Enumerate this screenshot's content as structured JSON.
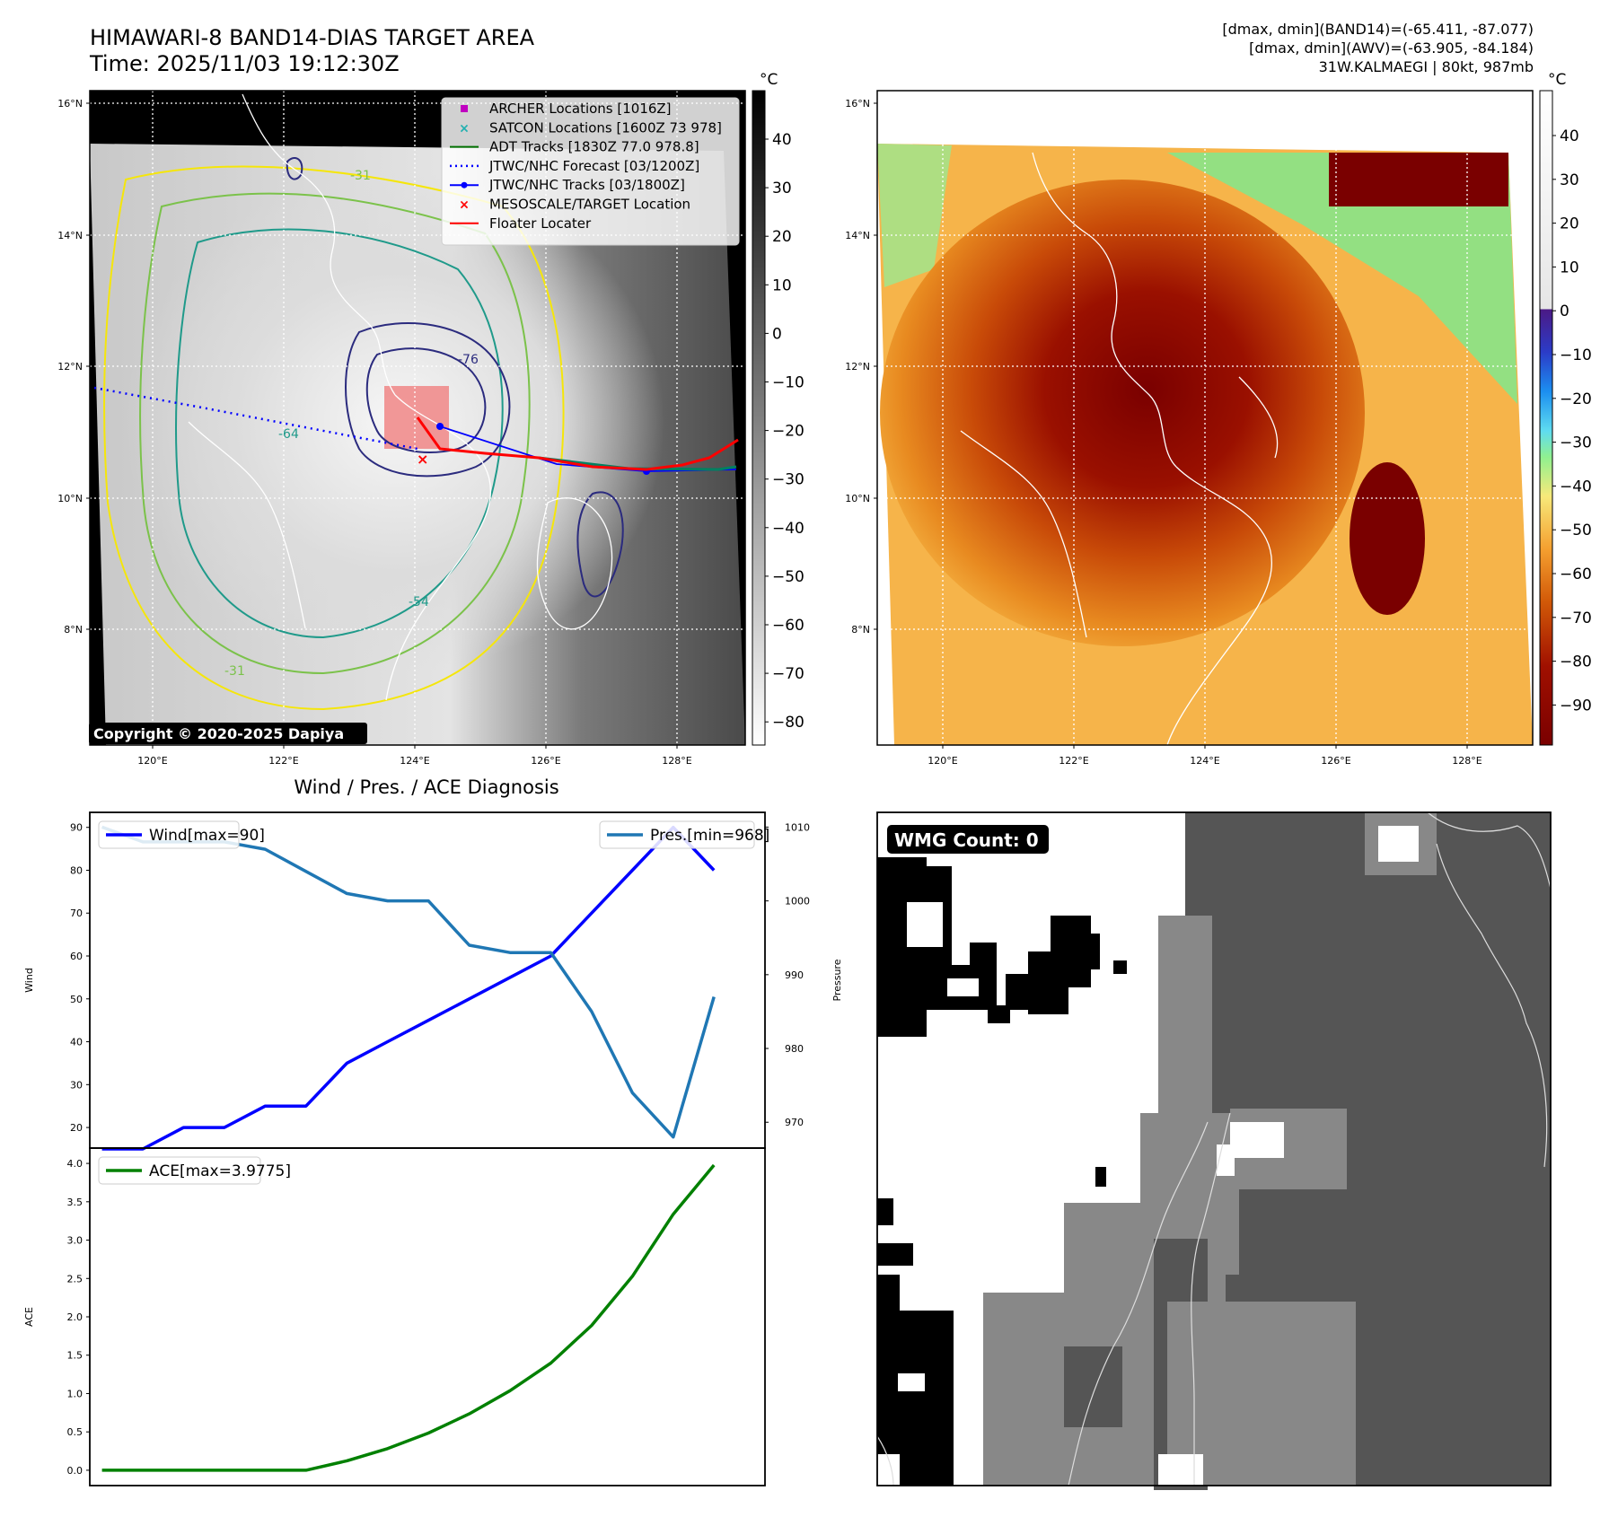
{
  "header": {
    "title_line1": "HIMAWARI-8 BAND14-DIAS TARGET AREA",
    "title_line2": "Time: 2025/11/03 19:12:30Z",
    "info_line1": "[dmax, dmin](BAND14)=(-65.411, -87.077)",
    "info_line2": "[dmax, dmin](AWV)=(-63.905, -84.184)",
    "info_line3": "31W.KALMAEGI | 80kt, 987mb"
  },
  "map_left": {
    "lat_labels": [
      "16°N",
      "14°N",
      "12°N",
      "10°N",
      "8°N"
    ],
    "lon_labels": [
      "120°E",
      "122°E",
      "124°E",
      "126°E",
      "128°E"
    ],
    "copyright": "Copyright © 2020-2025 Dapiya",
    "legend": [
      {
        "label": "ARCHER Locations [1016Z]",
        "color": "#c000c0",
        "marker": "square"
      },
      {
        "label": "SATCON Locations [1600Z 73 978]",
        "color": "#20b0b0",
        "marker": "x"
      },
      {
        "label": "ADT Tracks [1830Z 77.0 978.8]",
        "color": "#007000",
        "marker": "line"
      },
      {
        "label": "JTWC/NHC Forecast [03/1200Z]",
        "color": "#0000ff",
        "marker": "dotted"
      },
      {
        "label": "JTWC/NHC Tracks [03/1800Z]",
        "color": "#0000ff",
        "marker": "line-dot"
      },
      {
        "label": "MESOSCALE/TARGET Location",
        "color": "#ff0000",
        "marker": "x"
      },
      {
        "label": "Floater Locater",
        "color": "#ff0000",
        "marker": "line"
      }
    ],
    "contour_labels": [
      "-31",
      "-54",
      "-76",
      "-31",
      "-64"
    ],
    "colorbar": {
      "unit": "°C",
      "ticks": [
        "40",
        "30",
        "20",
        "10",
        "0",
        "−10",
        "−20",
        "−30",
        "−40",
        "−50",
        "−60",
        "−70",
        "−80"
      ]
    }
  },
  "map_right": {
    "lat_labels": [
      "16°N",
      "14°N",
      "12°N",
      "10°N",
      "8°N"
    ],
    "lon_labels": [
      "120°E",
      "122°E",
      "124°E",
      "126°E",
      "128°E"
    ],
    "colorbar": {
      "unit": "°C",
      "ticks": [
        "40",
        "30",
        "20",
        "10",
        "0",
        "−10",
        "−20",
        "−30",
        "−40",
        "−50",
        "−60",
        "−70",
        "−80",
        "−90"
      ]
    }
  },
  "wmg": {
    "label": "WMG Count: 0"
  },
  "chart_data": [
    {
      "type": "line",
      "title": "Wind / Pres. / ACE Diagnosis",
      "ylabel": "Wind",
      "ylabel_right": "Pressure",
      "ylim": [
        15.2,
        93.5
      ],
      "ylim_right": [
        966.5,
        1012
      ],
      "yticks": [
        20,
        30,
        40,
        50,
        60,
        70,
        80,
        90
      ],
      "yticks_right": [
        970,
        980,
        990,
        1000,
        1010
      ],
      "x": [
        0,
        1,
        2,
        3,
        4,
        5,
        6,
        7,
        8,
        9,
        10,
        11,
        12,
        13,
        14,
        15
      ],
      "xlim": [
        -0.3,
        16.25
      ],
      "series": [
        {
          "name": "Wind[max=90]",
          "color": "#0000ff",
          "axis": "left",
          "values": [
            15,
            15,
            20,
            20,
            25,
            25,
            35,
            40,
            45,
            50,
            55,
            60,
            70,
            80,
            90,
            80
          ]
        },
        {
          "name": "Pres.[min=968]",
          "color": "#1f77b4",
          "axis": "right",
          "values": [
            1010,
            1008,
            1008,
            1008,
            1007,
            1004,
            1001,
            1000,
            1000,
            994,
            993,
            993,
            985,
            974,
            968,
            987
          ]
        }
      ]
    },
    {
      "type": "line",
      "ylabel": "ACE",
      "ylim": [
        -0.2,
        4.2
      ],
      "yticks": [
        "0.0",
        "0.5",
        "1.0",
        "1.5",
        "2.0",
        "2.5",
        "3.0",
        "3.5",
        "4.0"
      ],
      "x": [
        0,
        1,
        2,
        3,
        4,
        5,
        6,
        7,
        8,
        9,
        10,
        11,
        12,
        13,
        14,
        15
      ],
      "xlim": [
        -0.3,
        16.25
      ],
      "series": [
        {
          "name": "ACE[max=3.9775]",
          "color": "#008000",
          "axis": "left",
          "values": [
            0,
            0,
            0,
            0,
            0,
            0,
            0.1225,
            0.2825,
            0.485,
            0.735,
            1.0375,
            1.3975,
            1.8875,
            2.5275,
            3.3375,
            3.9775
          ]
        }
      ]
    }
  ]
}
